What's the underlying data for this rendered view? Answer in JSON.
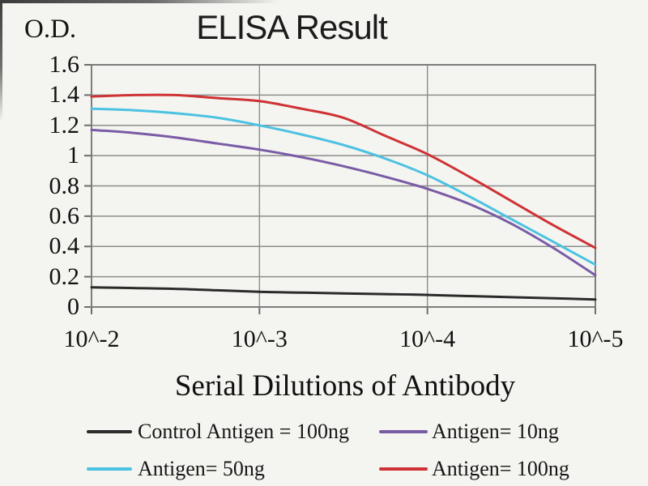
{
  "header": {
    "title": "ELISA Result",
    "y_axis_corner_label": "O.D."
  },
  "chart_data": {
    "type": "line",
    "title": "ELISA Result",
    "xlabel": "Serial Dilutions of Antibody",
    "ylabel": "O.D.",
    "x_axis": {
      "scale": "log-dilution",
      "tick_labels": [
        "10^-2",
        "10^-3",
        "10^-4",
        "10^-5"
      ],
      "tick_positions_t": [
        0,
        1,
        2,
        3
      ]
    },
    "y_axis": {
      "ticks": [
        0,
        0.2,
        0.4,
        0.6,
        0.8,
        1,
        1.2,
        1.4,
        1.6
      ],
      "tick_labels": [
        "0",
        "0.2",
        "0.4",
        "0.6",
        "0.8",
        "1",
        "1.2",
        "1.4",
        "1.6"
      ],
      "ylim": [
        0,
        1.6
      ]
    },
    "grid": true,
    "grid_color": "#8c8c8c",
    "border_color": "#7d7d7d",
    "x_samples_t": [
      0,
      0.25,
      0.5,
      0.75,
      1,
      1.25,
      1.5,
      1.75,
      2,
      2.25,
      2.5,
      2.75,
      3
    ],
    "series": [
      {
        "name": "Control Antigen = 100ng",
        "color": "#2b2b2b",
        "values": [
          0.13,
          0.125,
          0.12,
          0.11,
          0.1,
          0.095,
          0.09,
          0.085,
          0.08,
          0.072,
          0.065,
          0.058,
          0.05
        ],
        "values_at_x_ticks": [
          0.13,
          0.1,
          0.08,
          0.05
        ]
      },
      {
        "name": "Antigen= 10ng",
        "color": "#7a5ba6",
        "values": [
          1.17,
          1.15,
          1.12,
          1.08,
          1.04,
          0.99,
          0.93,
          0.86,
          0.78,
          0.68,
          0.55,
          0.39,
          0.21
        ],
        "values_at_x_ticks": [
          1.17,
          1.04,
          0.78,
          0.21
        ]
      },
      {
        "name": "Antigen= 50ng",
        "color": "#4cc2e2",
        "values": [
          1.31,
          1.3,
          1.28,
          1.25,
          1.2,
          1.14,
          1.07,
          0.98,
          0.87,
          0.73,
          0.58,
          0.43,
          0.28
        ],
        "values_at_x_ticks": [
          1.31,
          1.2,
          0.87,
          0.28
        ]
      },
      {
        "name": "Antigen= 100ng",
        "color": "#cf3235",
        "values": [
          1.39,
          1.4,
          1.4,
          1.38,
          1.36,
          1.31,
          1.25,
          1.13,
          1.01,
          0.86,
          0.7,
          0.54,
          0.39
        ],
        "values_at_x_ticks": [
          1.39,
          1.36,
          1.01,
          0.39
        ]
      }
    ],
    "legend": {
      "position": "below",
      "items": [
        {
          "label": "Control Antigen = 100ng",
          "color": "#2b2b2b"
        },
        {
          "label": "Antigen= 10ng",
          "color": "#7a5ba6"
        },
        {
          "label": "Antigen= 50ng",
          "color": "#4cc2e2"
        },
        {
          "label": "Antigen= 100ng",
          "color": "#cf3235"
        }
      ]
    }
  }
}
